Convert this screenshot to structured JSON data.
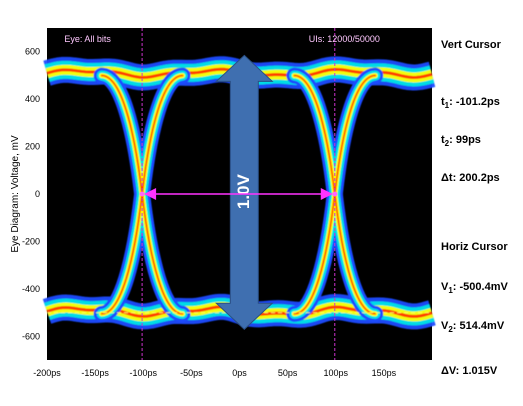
{
  "chart_data": {
    "type": "eye-diagram",
    "ylabel": "Eye Diagram: Voltage, mV",
    "xlim": [
      -200,
      200
    ],
    "ylim": [
      -700,
      700
    ],
    "x_ticks": [
      {
        "value": -200,
        "label": "-200ps"
      },
      {
        "value": -150,
        "label": "-150ps"
      },
      {
        "value": -100,
        "label": "-100ps"
      },
      {
        "value": -50,
        "label": "-50ps"
      },
      {
        "value": 0,
        "label": "0ps"
      },
      {
        "value": 50,
        "label": "50ps"
      },
      {
        "value": 100,
        "label": "100ps"
      },
      {
        "value": 150,
        "label": "150ps"
      }
    ],
    "y_ticks": [
      {
        "value": 600,
        "label": "600"
      },
      {
        "value": 400,
        "label": "400"
      },
      {
        "value": 200,
        "label": "200"
      },
      {
        "value": 0,
        "label": "0"
      },
      {
        "value": -200,
        "label": "-200"
      },
      {
        "value": -400,
        "label": "-400"
      },
      {
        "value": -600,
        "label": "-600"
      }
    ],
    "eye_label": "Eye: All bits",
    "uis_label": "UIs: 12000/50000",
    "crossings_ps": [
      -101.2,
      99
    ],
    "high_level_mv": 514.4,
    "low_level_mv": -500.4,
    "arrow_label": "1.0V",
    "vert_cursor": {
      "title": "Vert Cursor",
      "t1": {
        "name": "t",
        "sub": "1",
        "value": ": -101.2ps",
        "ps": -101.2
      },
      "t2": {
        "name": "t",
        "sub": "2",
        "value": ": 99ps",
        "ps": 99
      },
      "dt": {
        "label": "Δt: 200.2ps"
      }
    },
    "horiz_cursor": {
      "title": "Horiz Cursor",
      "v1": {
        "name": "V",
        "sub": "1",
        "value": ": -500.4mV",
        "mv": -500.4
      },
      "v2": {
        "name": "V",
        "sub": "2",
        "value": ": 514.4mV",
        "mv": 514.4
      },
      "dv": {
        "label": "ΔV: 1.015V"
      }
    },
    "colors": {
      "background": "#000000",
      "trace_outer": "#1a4cff",
      "trace_mid": "#00e5e5",
      "trace_inner": "#ffff00",
      "trace_core": "#ff3300",
      "cursor": "#cc33cc",
      "arrow": "#3f6fb0"
    }
  }
}
